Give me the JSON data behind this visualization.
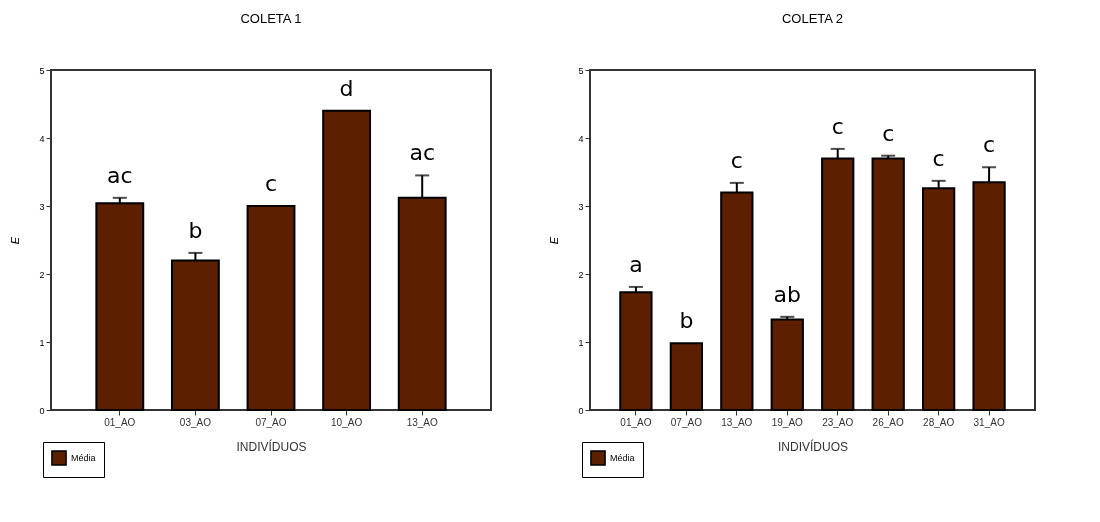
{
  "chart_data": [
    {
      "type": "bar",
      "title": "COLETA 1",
      "xlabel": "INDIVÍDUOS",
      "ylabel": "E",
      "categories": [
        "01_AO",
        "03_AO",
        "07_AO",
        "10_AO",
        "13_AO"
      ],
      "series": [
        {
          "name": "Média",
          "color": "#5c1f00",
          "values": [
            3.04,
            2.2,
            3.0,
            4.4,
            3.12
          ],
          "errors": [
            [
              3.04,
              3.12
            ],
            [
              2.2,
              2.31
            ],
            null,
            null,
            [
              3.12,
              3.45
            ]
          ]
        }
      ],
      "ylim": [
        0,
        5
      ],
      "yticks": [
        0,
        1,
        2,
        3,
        4,
        5
      ],
      "grid": false,
      "legend": "bottom left",
      "annotations": [
        "ac",
        "b",
        "c",
        "d",
        "ac"
      ]
    },
    {
      "type": "bar",
      "title": "COLETA 2",
      "xlabel": "INDIVÍDUOS",
      "ylabel": "E",
      "categories": [
        "01_AO",
        "07_AO",
        "13_AO",
        "19_AO",
        "23_AO",
        "26_AO",
        "28_AO",
        "31_AO"
      ],
      "series": [
        {
          "name": "Média",
          "color": "#5c1f00",
          "values": [
            1.73,
            0.98,
            3.2,
            1.33,
            3.7,
            3.7,
            3.26,
            3.35
          ],
          "errors": [
            [
              1.73,
              1.81
            ],
            null,
            [
              3.2,
              3.34
            ],
            [
              1.33,
              1.37
            ],
            [
              3.7,
              3.84
            ],
            [
              3.7,
              3.74
            ],
            [
              3.26,
              3.37
            ],
            [
              3.35,
              3.57
            ]
          ]
        }
      ],
      "ylim": [
        0,
        5
      ],
      "yticks": [
        0,
        1,
        2,
        3,
        4,
        5
      ],
      "grid": false,
      "legend": "bottom left",
      "annotations": [
        "a",
        "b",
        "c",
        "ab",
        "c",
        "c",
        "c",
        "c"
      ]
    }
  ]
}
